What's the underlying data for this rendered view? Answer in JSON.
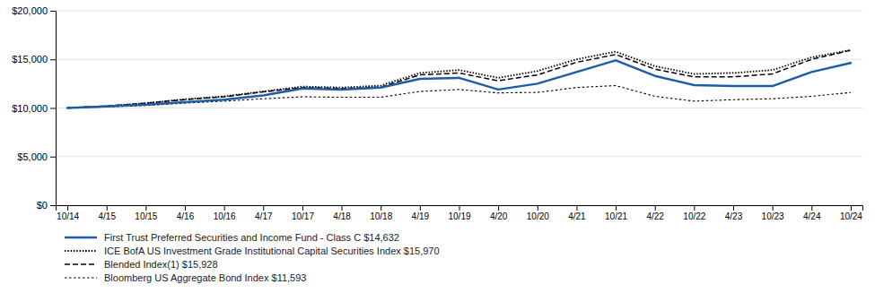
{
  "chart_data": {
    "type": "line",
    "categories": [
      "10/14",
      "4/15",
      "10/15",
      "4/16",
      "10/16",
      "4/17",
      "10/17",
      "4/18",
      "10/18",
      "4/19",
      "10/19",
      "4/20",
      "10/20",
      "4/21",
      "10/21",
      "4/22",
      "10/22",
      "4/23",
      "10/23",
      "4/24",
      "10/24"
    ],
    "series": [
      {
        "name": "First Trust Preferred Securities and Income Fund - Class C $14,632",
        "color": "#1B5EA6",
        "line_style": "solid",
        "values": [
          10000,
          10150,
          10350,
          10600,
          10850,
          11300,
          12000,
          11900,
          12100,
          13000,
          13100,
          11900,
          12500,
          13700,
          14900,
          13300,
          12350,
          12250,
          12250,
          13700,
          14632
        ]
      },
      {
        "name": "ICE BofA US Investment Grade Institutional Capital Securities Index $15,970",
        "color": "#000000",
        "line_style": "dotted",
        "values": [
          10000,
          10200,
          10500,
          10900,
          11200,
          11700,
          12200,
          12100,
          12300,
          13600,
          13900,
          13100,
          13800,
          15000,
          15800,
          14300,
          13500,
          13600,
          13900,
          15200,
          15970
        ]
      },
      {
        "name": "Blended Index(1) $15,928",
        "color": "#000000",
        "line_style": "dashed",
        "values": [
          10000,
          10200,
          10480,
          10860,
          11150,
          11650,
          12100,
          12000,
          12150,
          13400,
          13600,
          12800,
          13400,
          14700,
          15500,
          14000,
          13200,
          13200,
          13500,
          15000,
          15928
        ]
      },
      {
        "name": "Bloomberg US Aggregate Bond Index $11,593",
        "color": "#000000",
        "line_style": "sparse-dotted",
        "values": [
          10000,
          10100,
          10250,
          10500,
          10700,
          10950,
          11150,
          11100,
          11100,
          11700,
          11900,
          11550,
          11600,
          12100,
          12300,
          11200,
          10700,
          10850,
          10950,
          11200,
          11593
        ]
      }
    ],
    "ylim": [
      0,
      20000
    ],
    "yticks": [
      {
        "value": 0,
        "label": "$0"
      },
      {
        "value": 5000,
        "label": "$5,000"
      },
      {
        "value": 10000,
        "label": "$10,000"
      },
      {
        "value": 15000,
        "label": "$15,000"
      },
      {
        "value": 20000,
        "label": "$20,000"
      }
    ],
    "grid": true,
    "legend": "bottom"
  }
}
